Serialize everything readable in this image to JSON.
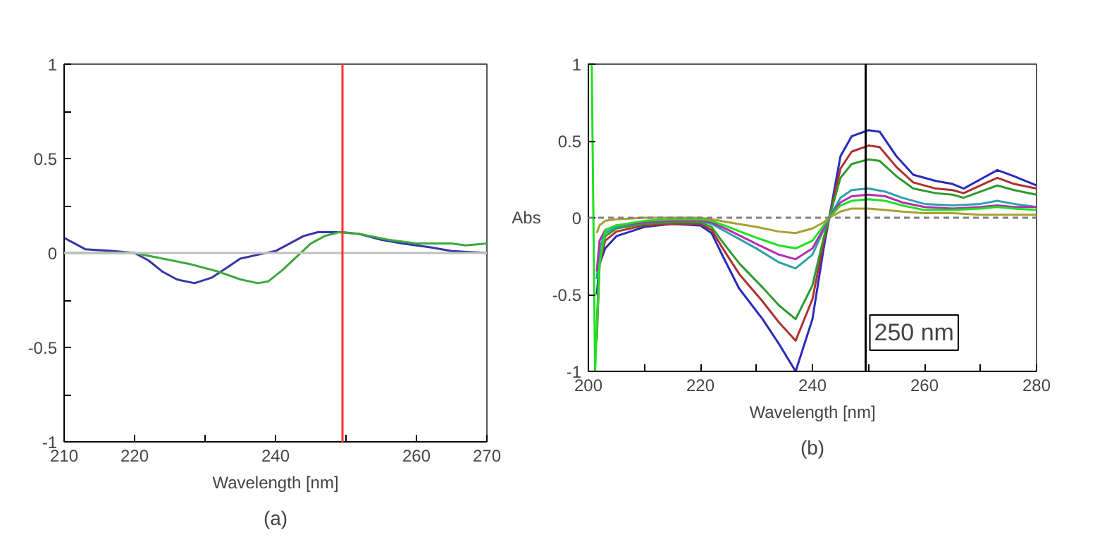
{
  "chart_data": [
    {
      "type": "line",
      "title": "(a)",
      "xlabel": "Wavelength [nm]",
      "xlim": [
        210,
        270
      ],
      "ylim": [
        -1,
        1
      ],
      "xticks": [
        210,
        220,
        {
          "value": 230,
          "label": null
        },
        240,
        {
          "value": 250,
          "label": null
        },
        260,
        270
      ],
      "yticks": [
        -1,
        {
          "value": -0.75,
          "label": null
        },
        -0.5,
        {
          "value": -0.25,
          "label": null
        },
        0,
        {
          "value": 0.25,
          "label": null
        },
        0.5,
        {
          "value": 0.75,
          "label": null
        },
        1
      ],
      "grid": false,
      "line_style": "solid",
      "ref_lines": [
        {
          "axis": "y",
          "value": 0,
          "color": "#c0c0c0",
          "line_style": "solid"
        },
        {
          "axis": "x",
          "value": 249.5,
          "color": "#ff3030",
          "line_style": "solid"
        }
      ],
      "series": [
        {
          "color": "#3535a8",
          "x": [
            210,
            213,
            217,
            220,
            222,
            224,
            226,
            228.5,
            231,
            233,
            235,
            238,
            240,
            242,
            244,
            246,
            249.5,
            252,
            255,
            258,
            262,
            265,
            270
          ],
          "values": [
            0.08,
            0.02,
            0.01,
            0.0,
            -0.04,
            -0.1,
            -0.14,
            -0.16,
            -0.13,
            -0.08,
            -0.03,
            -0.005,
            0.01,
            0.05,
            0.09,
            0.11,
            0.11,
            0.1,
            0.07,
            0.05,
            0.03,
            0.01,
            0.0
          ]
        },
        {
          "color": "#3ca83c",
          "x": [
            210,
            220,
            224,
            228,
            232,
            235,
            237.5,
            239,
            241,
            243,
            245,
            247,
            249,
            252,
            256,
            260,
            265,
            267,
            270
          ],
          "values": [
            0.0,
            0.0,
            -0.03,
            -0.06,
            -0.1,
            -0.14,
            -0.16,
            -0.15,
            -0.09,
            -0.02,
            0.05,
            0.09,
            0.11,
            0.1,
            0.07,
            0.05,
            0.05,
            0.04,
            0.05
          ]
        }
      ]
    },
    {
      "type": "line",
      "title": "(b)",
      "xlabel": "Wavelength [nm]",
      "ylabel": "Abs",
      "xlim": [
        200,
        280
      ],
      "ylim": [
        -1,
        1
      ],
      "xticks": [
        200,
        {
          "value": 210,
          "label": null
        },
        220,
        {
          "value": 230,
          "label": null
        },
        240,
        {
          "value": 250,
          "label": null
        },
        260,
        {
          "value": 270,
          "label": null
        },
        280
      ],
      "yticks": [
        -1,
        -0.5,
        0,
        0.5,
        1
      ],
      "grid": false,
      "line_style": "solid",
      "ref_lines": [
        {
          "axis": "y",
          "value": 0,
          "color": "#808080",
          "line_style": "dashed"
        },
        {
          "axis": "x",
          "value": 249.5,
          "label": "250 nm",
          "color": "#000000",
          "line_style": "solid"
        }
      ],
      "series": [
        {
          "color": "#2a2ab8",
          "x": [
            201.5,
            202,
            203,
            205,
            210,
            215,
            220,
            222,
            224,
            226.9,
            231.1,
            234,
            237,
            240,
            242,
            243,
            245,
            247,
            250,
            252,
            255,
            258,
            262,
            265,
            267,
            270,
            273,
            276,
            280
          ],
          "values": [
            -0.5,
            -0.3,
            -0.2,
            -0.12,
            -0.06,
            -0.04,
            -0.05,
            -0.1,
            -0.25,
            -0.46,
            -0.66,
            -0.82,
            -1.0,
            -0.66,
            -0.2,
            0.0,
            0.4,
            0.53,
            0.57,
            0.56,
            0.4,
            0.28,
            0.24,
            0.22,
            0.19,
            0.25,
            0.31,
            0.27,
            0.21
          ]
        },
        {
          "color": "#b03030",
          "x": [
            201.5,
            202,
            203,
            205,
            210,
            215,
            220,
            222,
            224,
            227,
            231,
            234,
            237,
            240,
            242,
            243,
            245,
            247,
            250,
            252,
            255,
            258,
            262,
            265,
            267,
            270,
            273,
            276,
            280
          ],
          "values": [
            -0.8,
            -0.3,
            -0.15,
            -0.09,
            -0.05,
            -0.04,
            -0.04,
            -0.08,
            -0.2,
            -0.37,
            -0.54,
            -0.68,
            -0.8,
            -0.53,
            -0.16,
            0.0,
            0.32,
            0.43,
            0.47,
            0.46,
            0.33,
            0.23,
            0.19,
            0.18,
            0.16,
            0.21,
            0.26,
            0.22,
            0.19
          ]
        },
        {
          "color": "#2e9a2e",
          "x": [
            201.5,
            202,
            203,
            205,
            210,
            215,
            220,
            222,
            224,
            227,
            231,
            234,
            237,
            240,
            242,
            243,
            245,
            247,
            250,
            252,
            255,
            258,
            262,
            265,
            267,
            270,
            273,
            276,
            280
          ],
          "values": [
            -0.7,
            -0.25,
            -0.12,
            -0.07,
            -0.04,
            -0.03,
            -0.03,
            -0.06,
            -0.16,
            -0.3,
            -0.45,
            -0.57,
            -0.66,
            -0.44,
            -0.13,
            0.0,
            0.26,
            0.35,
            0.38,
            0.37,
            0.27,
            0.19,
            0.16,
            0.15,
            0.13,
            0.17,
            0.21,
            0.18,
            0.15
          ]
        },
        {
          "color": "#30a0a8",
          "x": [
            201.5,
            202,
            203,
            205,
            210,
            215,
            220,
            222,
            225,
            230,
            234,
            237,
            240,
            242,
            243,
            245,
            247,
            250,
            253,
            256,
            260,
            265,
            270,
            273,
            276,
            280
          ],
          "values": [
            -0.4,
            -0.2,
            -0.1,
            -0.06,
            -0.03,
            -0.02,
            -0.02,
            -0.04,
            -0.1,
            -0.2,
            -0.29,
            -0.33,
            -0.24,
            -0.08,
            0.0,
            0.13,
            0.18,
            0.19,
            0.17,
            0.13,
            0.09,
            0.08,
            0.09,
            0.11,
            0.09,
            0.07
          ]
        },
        {
          "color": "#b030b0",
          "x": [
            201.5,
            202,
            203,
            205,
            210,
            215,
            220,
            222,
            225,
            230,
            234,
            237,
            240,
            242,
            243,
            245,
            247,
            250,
            253,
            256,
            260,
            265,
            270,
            273,
            276,
            280
          ],
          "values": [
            -0.35,
            -0.15,
            -0.08,
            -0.05,
            -0.03,
            -0.02,
            -0.02,
            -0.03,
            -0.08,
            -0.17,
            -0.24,
            -0.27,
            -0.2,
            -0.07,
            0.0,
            0.1,
            0.14,
            0.15,
            0.14,
            0.1,
            0.07,
            0.06,
            0.07,
            0.08,
            0.07,
            0.07
          ]
        },
        {
          "color": "#20e020",
          "x": [
            200.6,
            201.2,
            202,
            203,
            205,
            210,
            215,
            220,
            222,
            225,
            230,
            234,
            237,
            240,
            242,
            243,
            245,
            247,
            250,
            253,
            256,
            260,
            265,
            270,
            273,
            276,
            280
          ],
          "values": [
            1.0,
            -1.0,
            -0.3,
            -0.08,
            -0.05,
            -0.02,
            -0.01,
            -0.01,
            -0.02,
            -0.06,
            -0.13,
            -0.18,
            -0.2,
            -0.15,
            -0.05,
            0.0,
            0.08,
            0.11,
            0.12,
            0.11,
            0.08,
            0.05,
            0.05,
            0.06,
            0.07,
            0.06,
            0.05
          ]
        },
        {
          "color": "#a8a030",
          "x": [
            201.5,
            202,
            203,
            205,
            210,
            215,
            220,
            222,
            225,
            230,
            234,
            237,
            240,
            242,
            243,
            245,
            247,
            250,
            253,
            256,
            260,
            265,
            270,
            275,
            280
          ],
          "values": [
            -0.1,
            -0.05,
            -0.02,
            -0.01,
            0.0,
            0.0,
            0.0,
            -0.01,
            -0.03,
            -0.06,
            -0.09,
            -0.1,
            -0.07,
            -0.03,
            0.0,
            0.04,
            0.06,
            0.06,
            0.05,
            0.04,
            0.03,
            0.03,
            0.02,
            0.02,
            0.02
          ]
        }
      ]
    }
  ]
}
